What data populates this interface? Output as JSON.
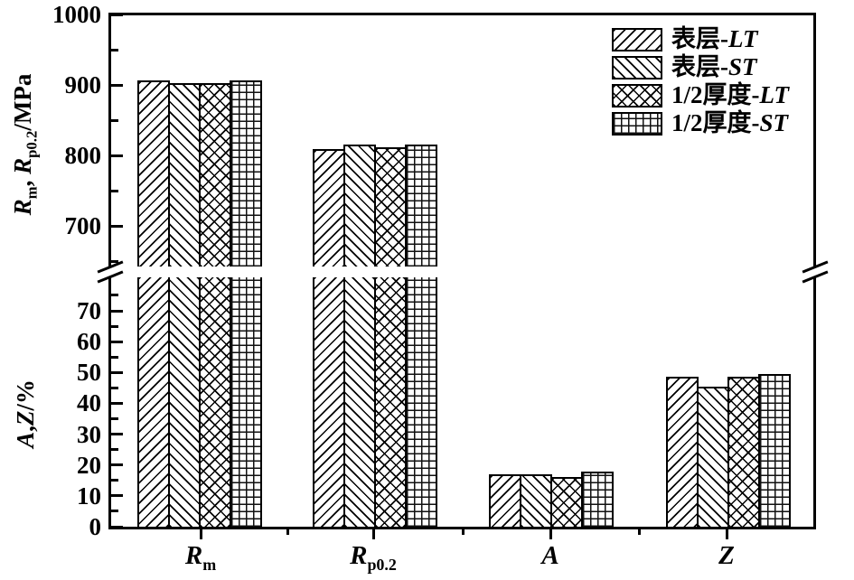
{
  "figure_title": "",
  "chart_data": {
    "type": "bar",
    "title": "",
    "categories": [
      "Rm",
      "Rp0.2",
      "A",
      "Z"
    ],
    "categories_rich": [
      [
        {
          "t": "R",
          "i": 1
        },
        {
          "t": "m",
          "sub": 1
        }
      ],
      [
        {
          "t": "R",
          "i": 1
        },
        {
          "t": "p0.2",
          "sub": 1
        }
      ],
      [
        {
          "t": "A",
          "i": 1
        }
      ],
      [
        {
          "t": "Z",
          "i": 1
        }
      ]
    ],
    "category_panel": [
      "mpa",
      "mpa",
      "pct",
      "pct"
    ],
    "series": [
      {
        "name": "表层-LT",
        "name_rich": [
          {
            "t": "表层-"
          },
          {
            "t": "LT",
            "i": 1
          }
        ],
        "pattern": "diagonal-forward",
        "values": [
          906,
          809,
          17,
          48.5
        ]
      },
      {
        "name": "表层-ST",
        "name_rich": [
          {
            "t": "表层-"
          },
          {
            "t": "ST",
            "i": 1
          }
        ],
        "pattern": "diagonal-backward",
        "values": [
          902,
          815,
          17,
          45.5
        ]
      },
      {
        "name": "1/2厚度-LT",
        "name_rich": [
          {
            "t": "1/2厚度-"
          },
          {
            "t": "LT",
            "i": 1
          }
        ],
        "pattern": "crosshatch",
        "values": [
          902,
          811,
          16,
          48.5
        ]
      },
      {
        "name": "1/2厚度-ST",
        "name_rich": [
          {
            "t": "1/2厚度-"
          },
          {
            "t": "ST",
            "i": 1
          }
        ],
        "pattern": "grid",
        "values": [
          906,
          816,
          18,
          49.5
        ]
      }
    ],
    "axes": {
      "broken_y_axis": true,
      "top_scale": {
        "label": "Rm, Rp0.2/MPa",
        "label_rich": [
          {
            "t": "R",
            "i": 1
          },
          {
            "t": "m",
            "sub": 1
          },
          {
            "t": ", "
          },
          {
            "t": "R",
            "i": 1
          },
          {
            "t": "p0.2",
            "sub": 1
          },
          {
            "t": "/MPa"
          }
        ],
        "major_ticks": [
          1000,
          900,
          800,
          700
        ],
        "minor_ticks": [
          950,
          850,
          750,
          650
        ],
        "range": [
          650,
          1000
        ]
      },
      "bottom_scale": {
        "label": "A,Z/%",
        "label_rich": [
          {
            "t": "A",
            "i": 1
          },
          {
            "t": ","
          },
          {
            "t": "Z",
            "i": 1
          },
          {
            "t": "/%"
          }
        ],
        "major_ticks": [
          70,
          60,
          50,
          40,
          30,
          20,
          10,
          0
        ],
        "minor_ticks": [
          75,
          65,
          55,
          45,
          35,
          25,
          15,
          5
        ],
        "range": [
          0,
          78
        ]
      },
      "x_axis": {
        "grid": false
      }
    },
    "legend_position": "top-right-inside",
    "colors": {
      "foreground": "#000000",
      "background": "#ffffff"
    }
  }
}
